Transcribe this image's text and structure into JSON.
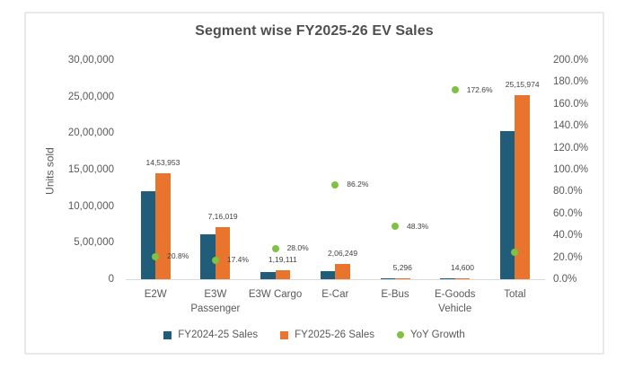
{
  "title": "Segment wise FY2025-26 EV Sales",
  "chart_data": {
    "type": "bar",
    "subtype": "combo-bar-scatter",
    "title": "Segment wise FY2025-26 EV Sales",
    "categories": [
      "E2W",
      "E3W Passenger",
      "E3W Cargo",
      "E-Car",
      "E-Bus",
      "E-Goods Vehicle",
      "Total"
    ],
    "category_label_lines": [
      [
        "E2W"
      ],
      [
        "E3W",
        "Passenger"
      ],
      [
        "E3W Cargo"
      ],
      [
        "E-Car"
      ],
      [
        "E-Bus"
      ],
      [
        "E-Goods",
        "Vehicle"
      ],
      [
        "Total"
      ]
    ],
    "series": [
      {
        "name": "FY2024-25 Sales",
        "type": "bar",
        "axis": "left",
        "color": "#1F5D7B",
        "values": [
          1203600,
          609900,
          93100,
          110800,
          3600,
          5400,
          2026250
        ],
        "labels": [
          null,
          null,
          null,
          null,
          null,
          null,
          null
        ]
      },
      {
        "name": "FY2025-26 Sales",
        "type": "bar",
        "axis": "left",
        "color": "#E8742D",
        "values": [
          1453953,
          716019,
          119111,
          206249,
          5296,
          14600,
          2515974
        ],
        "labels": [
          "14,53,953",
          "7,16,019",
          "1,19,111",
          "2,06,249",
          "5,296",
          "14,600",
          "25,15,974"
        ]
      },
      {
        "name": "YoY Growth",
        "type": "scatter",
        "axis": "right",
        "color": "#7DC243",
        "values": [
          20.8,
          17.4,
          28.0,
          86.2,
          48.3,
          172.6,
          24.2
        ],
        "labels": [
          "20.8%",
          "17.4%",
          "28.0%",
          "86.2%",
          "48.3%",
          "172.6%",
          null
        ]
      }
    ],
    "left_axis": {
      "title": "Units sold",
      "min": 0,
      "max": 3000000,
      "tick_labels": [
        "30,00,000",
        "25,00,000",
        "20,00,000",
        "15,00,000",
        "10,00,000",
        "5,00,000",
        "0"
      ]
    },
    "right_axis": {
      "min": 0,
      "max": 200,
      "tick_labels": [
        "200.0%",
        "180.0%",
        "160.0%",
        "140.0%",
        "120.0%",
        "100.0%",
        "80.0%",
        "60.0%",
        "40.0%",
        "20.0%",
        "0.0%"
      ]
    },
    "legend": {
      "position": "bottom",
      "items": [
        {
          "label": "FY2024-25 Sales",
          "marker": "square",
          "color": "#1F5D7B"
        },
        {
          "label": "FY2025-26 Sales",
          "marker": "square",
          "color": "#E8742D"
        },
        {
          "label": "YoY Growth",
          "marker": "circle",
          "color": "#7DC243"
        }
      ]
    },
    "grid": false
  }
}
